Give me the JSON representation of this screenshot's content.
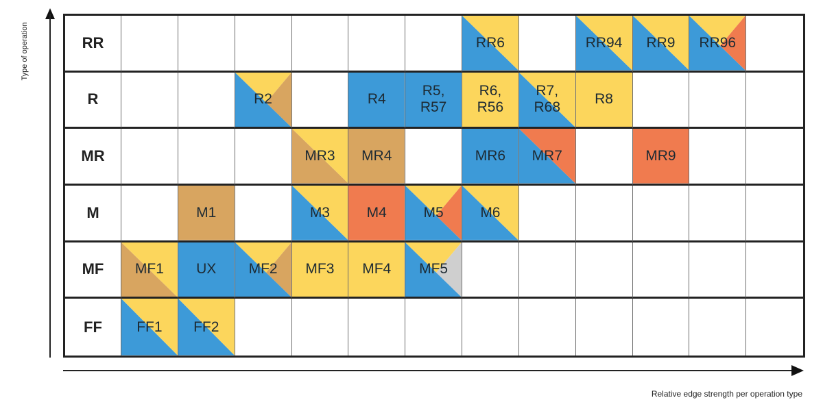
{
  "y_axis_title": "Type of operation",
  "x_axis_title": "Relative edge strength per operation type",
  "colors": {
    "blue": "#3d9ad8",
    "yellow": "#fcd65c",
    "tan": "#d8a560",
    "orange": "#f07b4f",
    "gray": "#cfcfcf"
  },
  "rows": [
    {
      "label": "RR",
      "cells": [
        null,
        null,
        null,
        null,
        null,
        null,
        {
          "text": "RR6",
          "fill": [
            "blue",
            "yellow"
          ]
        },
        null,
        {
          "text": "RR94",
          "fill": [
            "blue",
            "yellow"
          ]
        },
        {
          "text": "RR9",
          "fill": [
            "blue",
            "yellow"
          ]
        },
        {
          "text": "RR96",
          "fill": [
            "blue",
            "yellow",
            "orange"
          ]
        },
        null
      ]
    },
    {
      "label": "R",
      "cells": [
        null,
        null,
        {
          "text": "R2",
          "fill": [
            "blue",
            "yellow",
            "tan"
          ]
        },
        null,
        {
          "text": "R4",
          "fill": [
            "blue"
          ]
        },
        {
          "text": "R5,\nR57",
          "fill": [
            "blue"
          ]
        },
        {
          "text": "R6,\nR56",
          "fill": [
            "yellow"
          ]
        },
        {
          "text": "R7,\nR68",
          "fill": [
            "blue",
            "yellow"
          ]
        },
        {
          "text": "R8",
          "fill": [
            "yellow"
          ]
        },
        null,
        null,
        null
      ]
    },
    {
      "label": "MR",
      "cells": [
        null,
        null,
        null,
        {
          "text": "MR3",
          "fill": [
            "tan",
            "yellow"
          ]
        },
        {
          "text": "MR4",
          "fill": [
            "tan"
          ]
        },
        null,
        {
          "text": "MR6",
          "fill": [
            "blue"
          ]
        },
        {
          "text": "MR7",
          "fill": [
            "blue",
            "orange"
          ]
        },
        null,
        {
          "text": "MR9",
          "fill": [
            "orange"
          ]
        },
        null,
        null
      ]
    },
    {
      "label": "M",
      "cells": [
        null,
        {
          "text": "M1",
          "fill": [
            "tan"
          ]
        },
        null,
        {
          "text": "M3",
          "fill": [
            "blue",
            "yellow"
          ]
        },
        {
          "text": "M4",
          "fill": [
            "orange"
          ]
        },
        {
          "text": "M5",
          "fill": [
            "blue",
            "yellow",
            "orange"
          ]
        },
        {
          "text": "M6",
          "fill": [
            "blue",
            "yellow"
          ]
        },
        null,
        null,
        null,
        null,
        null
      ]
    },
    {
      "label": "MF",
      "cells": [
        {
          "text": "MF1",
          "fill": [
            "tan",
            "yellow"
          ]
        },
        {
          "text": "UX",
          "fill": [
            "blue"
          ]
        },
        {
          "text": "MF2",
          "fill": [
            "blue",
            "yellow",
            "tan"
          ]
        },
        {
          "text": "MF3",
          "fill": [
            "yellow"
          ]
        },
        {
          "text": "MF4",
          "fill": [
            "yellow"
          ]
        },
        {
          "text": "MF5",
          "fill": [
            "blue",
            "yellow",
            "gray"
          ]
        },
        null,
        null,
        null,
        null,
        null,
        null
      ]
    },
    {
      "label": "FF",
      "cells": [
        {
          "text": "FF1",
          "fill": [
            "blue",
            "yellow"
          ]
        },
        {
          "text": "FF2",
          "fill": [
            "blue",
            "yellow"
          ]
        },
        null,
        null,
        null,
        null,
        null,
        null,
        null,
        null,
        null,
        null
      ]
    }
  ]
}
